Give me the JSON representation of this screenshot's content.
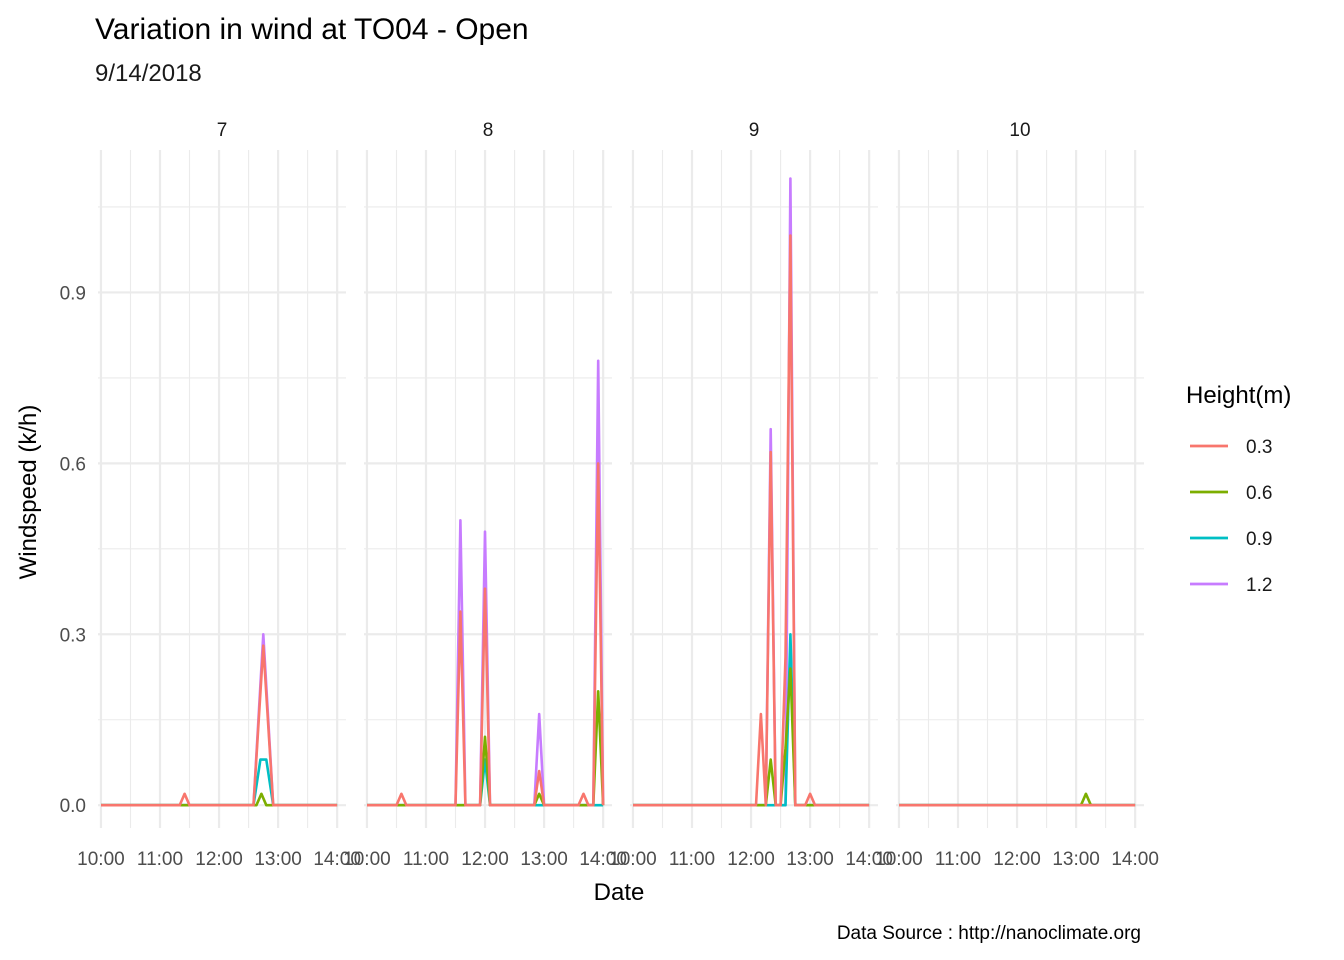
{
  "chart_data": {
    "type": "line",
    "title": "Variation in wind at TO04  - Open",
    "subtitle": "9/14/2018",
    "xlabel": "Date",
    "ylabel": "Windspeed (k/h)",
    "caption": "Data Source : http://nanoclimate.org",
    "x_ticks": [
      "10:00",
      "11:00",
      "12:00",
      "13:00",
      "14:00"
    ],
    "y_ticks": [
      0.0,
      0.3,
      0.6,
      0.9
    ],
    "y_tick_labels": [
      "0.0",
      "0.3",
      "0.6",
      "0.9"
    ],
    "ylim": [
      -0.04,
      1.15
    ],
    "xlim_hours": [
      9.95,
      14.15
    ],
    "grid": true,
    "legend_placement": "right",
    "legend": {
      "title": "Height(m)",
      "entries": [
        {
          "label": "0.3",
          "color": "#F8766D"
        },
        {
          "label": "0.6",
          "color": "#7CAE00"
        },
        {
          "label": "0.9",
          "color": "#00BFC4"
        },
        {
          "label": "1.2",
          "color": "#C77CFF"
        }
      ]
    },
    "facets": [
      {
        "label": "7",
        "series": [
          {
            "height": "1.2",
            "points": [
              [
                "10:00",
                0
              ],
              [
                "12:35",
                0
              ],
              [
                "12:45",
                0.3
              ],
              [
                "12:55",
                0
              ],
              [
                "14:00",
                0
              ]
            ]
          },
          {
            "height": "0.9",
            "points": [
              [
                "10:00",
                0
              ],
              [
                "12:35",
                0
              ],
              [
                "12:42",
                0.08
              ],
              [
                "12:48",
                0.08
              ],
              [
                "12:55",
                0
              ],
              [
                "14:00",
                0
              ]
            ]
          },
          {
            "height": "0.6",
            "points": [
              [
                "10:00",
                0
              ],
              [
                "12:38",
                0
              ],
              [
                "12:43",
                0.02
              ],
              [
                "12:48",
                0
              ],
              [
                "14:00",
                0
              ]
            ]
          },
          {
            "height": "0.3",
            "points": [
              [
                "10:00",
                0
              ],
              [
                "11:20",
                0
              ],
              [
                "11:25",
                0.02
              ],
              [
                "11:30",
                0
              ],
              [
                "12:35",
                0
              ],
              [
                "12:45",
                0.28
              ],
              [
                "12:55",
                0
              ],
              [
                "14:00",
                0
              ]
            ]
          }
        ]
      },
      {
        "label": "8",
        "series": [
          {
            "height": "1.2",
            "points": [
              [
                "10:00",
                0
              ],
              [
                "11:30",
                0
              ],
              [
                "11:35",
                0.5
              ],
              [
                "11:40",
                0
              ],
              [
                "11:55",
                0
              ],
              [
                "12:00",
                0.48
              ],
              [
                "12:05",
                0
              ],
              [
                "12:50",
                0
              ],
              [
                "12:55",
                0.16
              ],
              [
                "13:00",
                0
              ],
              [
                "13:50",
                0
              ],
              [
                "13:55",
                0.78
              ],
              [
                "14:00",
                0
              ]
            ]
          },
          {
            "height": "0.9",
            "points": [
              [
                "10:00",
                0
              ],
              [
                "11:55",
                0
              ],
              [
                "12:00",
                0.08
              ],
              [
                "12:05",
                0
              ],
              [
                "14:00",
                0
              ]
            ]
          },
          {
            "height": "0.6",
            "points": [
              [
                "10:00",
                0
              ],
              [
                "11:55",
                0
              ],
              [
                "12:00",
                0.12
              ],
              [
                "12:05",
                0
              ],
              [
                "12:50",
                0
              ],
              [
                "12:55",
                0.02
              ],
              [
                "13:00",
                0
              ],
              [
                "13:50",
                0
              ],
              [
                "13:55",
                0.2
              ],
              [
                "14:00",
                0
              ]
            ]
          },
          {
            "height": "0.3",
            "points": [
              [
                "10:00",
                0
              ],
              [
                "10:30",
                0
              ],
              [
                "10:35",
                0.02
              ],
              [
                "10:40",
                0
              ],
              [
                "11:30",
                0
              ],
              [
                "11:35",
                0.34
              ],
              [
                "11:40",
                0
              ],
              [
                "11:55",
                0
              ],
              [
                "12:00",
                0.38
              ],
              [
                "12:05",
                0
              ],
              [
                "12:50",
                0
              ],
              [
                "12:55",
                0.06
              ],
              [
                "13:00",
                0
              ],
              [
                "13:35",
                0
              ],
              [
                "13:40",
                0.02
              ],
              [
                "13:45",
                0
              ],
              [
                "13:50",
                0
              ],
              [
                "13:55",
                0.6
              ],
              [
                "14:00",
                0
              ]
            ]
          }
        ]
      },
      {
        "label": "9",
        "series": [
          {
            "height": "1.2",
            "points": [
              [
                "10:00",
                0
              ],
              [
                "12:15",
                0
              ],
              [
                "12:20",
                0.66
              ],
              [
                "12:25",
                0
              ],
              [
                "12:35",
                0
              ],
              [
                "12:40",
                1.1
              ],
              [
                "12:45",
                0
              ],
              [
                "14:00",
                0
              ]
            ]
          },
          {
            "height": "0.9",
            "points": [
              [
                "10:00",
                0
              ],
              [
                "12:35",
                0
              ],
              [
                "12:40",
                0.3
              ],
              [
                "12:45",
                0
              ],
              [
                "14:00",
                0
              ]
            ]
          },
          {
            "height": "0.6",
            "points": [
              [
                "10:00",
                0
              ],
              [
                "12:15",
                0
              ],
              [
                "12:20",
                0.08
              ],
              [
                "12:25",
                0
              ],
              [
                "12:30",
                0
              ],
              [
                "12:35",
                0.1
              ],
              [
                "12:40",
                0.24
              ],
              [
                "12:45",
                0
              ],
              [
                "14:00",
                0
              ]
            ]
          },
          {
            "height": "0.3",
            "points": [
              [
                "10:00",
                0
              ],
              [
                "12:05",
                0
              ],
              [
                "12:10",
                0.16
              ],
              [
                "12:15",
                0
              ],
              [
                "12:20",
                0.62
              ],
              [
                "12:25",
                0
              ],
              [
                "12:30",
                0
              ],
              [
                "12:35",
                0.26
              ],
              [
                "12:40",
                1.0
              ],
              [
                "12:45",
                0
              ],
              [
                "12:55",
                0
              ],
              [
                "13:00",
                0.02
              ],
              [
                "13:05",
                0
              ],
              [
                "14:00",
                0
              ]
            ]
          }
        ]
      },
      {
        "label": "10",
        "series": [
          {
            "height": "1.2",
            "points": [
              [
                "10:00",
                0
              ],
              [
                "14:00",
                0
              ]
            ]
          },
          {
            "height": "0.9",
            "points": [
              [
                "10:00",
                0
              ],
              [
                "14:00",
                0
              ]
            ]
          },
          {
            "height": "0.6",
            "points": [
              [
                "10:00",
                0
              ],
              [
                "13:05",
                0
              ],
              [
                "13:10",
                0.02
              ],
              [
                "13:15",
                0
              ],
              [
                "14:00",
                0
              ]
            ]
          },
          {
            "height": "0.3",
            "points": [
              [
                "10:00",
                0
              ],
              [
                "14:00",
                0
              ]
            ]
          }
        ]
      }
    ]
  }
}
